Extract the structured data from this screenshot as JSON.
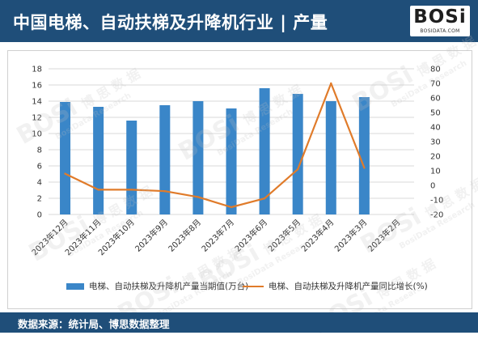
{
  "header": {
    "title": "中国电梯、自动扶梯及升降机行业 | 产量",
    "logo_text": "BOSi",
    "logo_sub": "BOSIDATA.COM"
  },
  "watermark": {
    "logo": "BOSi",
    "cn": "博 思 数 据",
    "en": "BosiData Research"
  },
  "chart_data": {
    "type": "bar+line",
    "categories": [
      "2023年12月",
      "2023年11月",
      "2023年10月",
      "2023年9月",
      "2023年8月",
      "2023年7月",
      "2023年6月",
      "2023年5月",
      "2023年4月",
      "2023年3月",
      "2023年2月"
    ],
    "series": [
      {
        "name": "电梯、自动扶梯及升降机产量当期值(万台)",
        "type": "bar",
        "axis": "left",
        "color": "#3a86c8",
        "values": [
          13.9,
          13.3,
          11.6,
          13.5,
          14.0,
          13.1,
          15.6,
          14.9,
          14.0,
          14.5,
          null
        ]
      },
      {
        "name": "电梯、自动扶梯及升降机产量同比增长(%)",
        "type": "line",
        "axis": "right",
        "color": "#e07b2a",
        "values": [
          8,
          -3,
          -3,
          -4,
          -8,
          -15,
          -9,
          11,
          70,
          12,
          null
        ]
      }
    ],
    "y_left": {
      "min": 0,
      "max": 18,
      "step": 2
    },
    "y_right": {
      "min": -20,
      "max": 80,
      "step": 10
    },
    "grid": true,
    "legend_position": "bottom"
  },
  "footer": {
    "source": "数据来源：统计局、博思数据整理"
  }
}
